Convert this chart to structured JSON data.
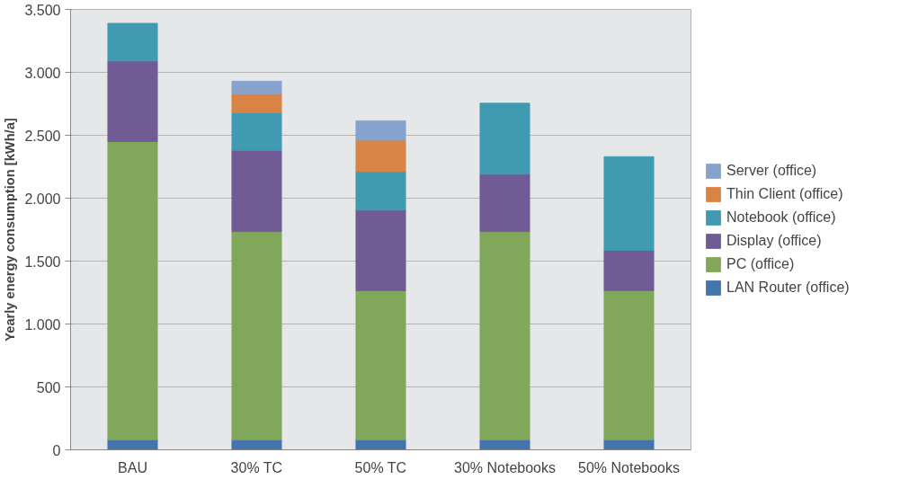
{
  "chart_data": {
    "type": "bar",
    "stacked": true,
    "ylabel": "Yearly energy consumption [kWh/a]",
    "categories": [
      "BAU",
      "30% TC",
      "50% TC",
      "30% Notebooks",
      "50% Notebooks"
    ],
    "series": [
      {
        "name": "LAN Router (office)",
        "color": "#4473ad",
        "values": [
          80,
          80,
          80,
          80,
          80
        ]
      },
      {
        "name": "PC (office)",
        "color": "#80a75a",
        "values": [
          2370,
          1655,
          1185,
          1655,
          1185
        ]
      },
      {
        "name": "Display (office)",
        "color": "#705b95",
        "values": [
          640,
          645,
          640,
          455,
          320
        ]
      },
      {
        "name": "Notebook (office)",
        "color": "#409bb2",
        "values": [
          300,
          300,
          305,
          565,
          745
        ]
      },
      {
        "name": "Thin Client (office)",
        "color": "#d98444",
        "values": [
          null,
          150,
          250,
          null,
          null
        ]
      },
      {
        "name": "Server (office)",
        "color": "#86a2cd",
        "values": [
          null,
          100,
          155,
          null,
          null
        ]
      }
    ],
    "ylim": [
      0,
      3500
    ],
    "yticks": [
      0,
      500,
      {
        "value": 1000,
        "label": "1.000"
      },
      {
        "value": 1500,
        "label": "1.500"
      },
      {
        "value": 2000,
        "label": "2.000"
      },
      {
        "value": 2500,
        "label": "2.500"
      },
      {
        "value": 3000,
        "label": "3.000"
      },
      {
        "value": 3500,
        "label": "3.500"
      }
    ],
    "grid": "y",
    "legend": "right"
  }
}
